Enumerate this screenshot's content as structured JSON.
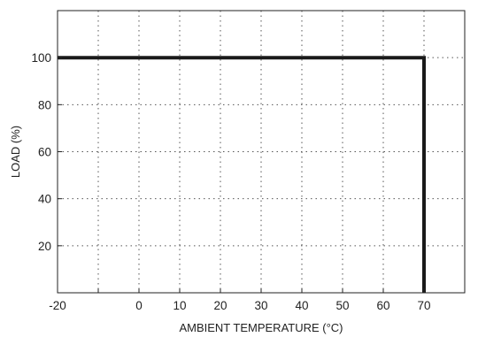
{
  "colors": {
    "series": "#1a1a1a",
    "grid": "#555555",
    "frame": "#222222",
    "background": "#ffffff"
  },
  "chart_data": {
    "type": "line",
    "title": "",
    "xlabel": "AMBIENT TEMPERATURE (°C)",
    "ylabel": "LOAD (%)",
    "xlim": [
      -20,
      80
    ],
    "ylim": [
      0,
      120
    ],
    "xticks": [
      -20,
      -10,
      0,
      10,
      20,
      30,
      40,
      50,
      60,
      70
    ],
    "xtick_labels": [
      "-20",
      "",
      "0",
      "10",
      "20",
      "30",
      "40",
      "50",
      "60",
      "70"
    ],
    "yticks": [
      20,
      40,
      60,
      80,
      100
    ],
    "ytick_labels": [
      "20",
      "40",
      "60",
      "80",
      "100"
    ],
    "grid": true,
    "grid_style": "dotted",
    "legend": "none",
    "series": [
      {
        "x": [
          -20,
          70,
          70
        ],
        "y": [
          100,
          100,
          0
        ]
      }
    ]
  }
}
